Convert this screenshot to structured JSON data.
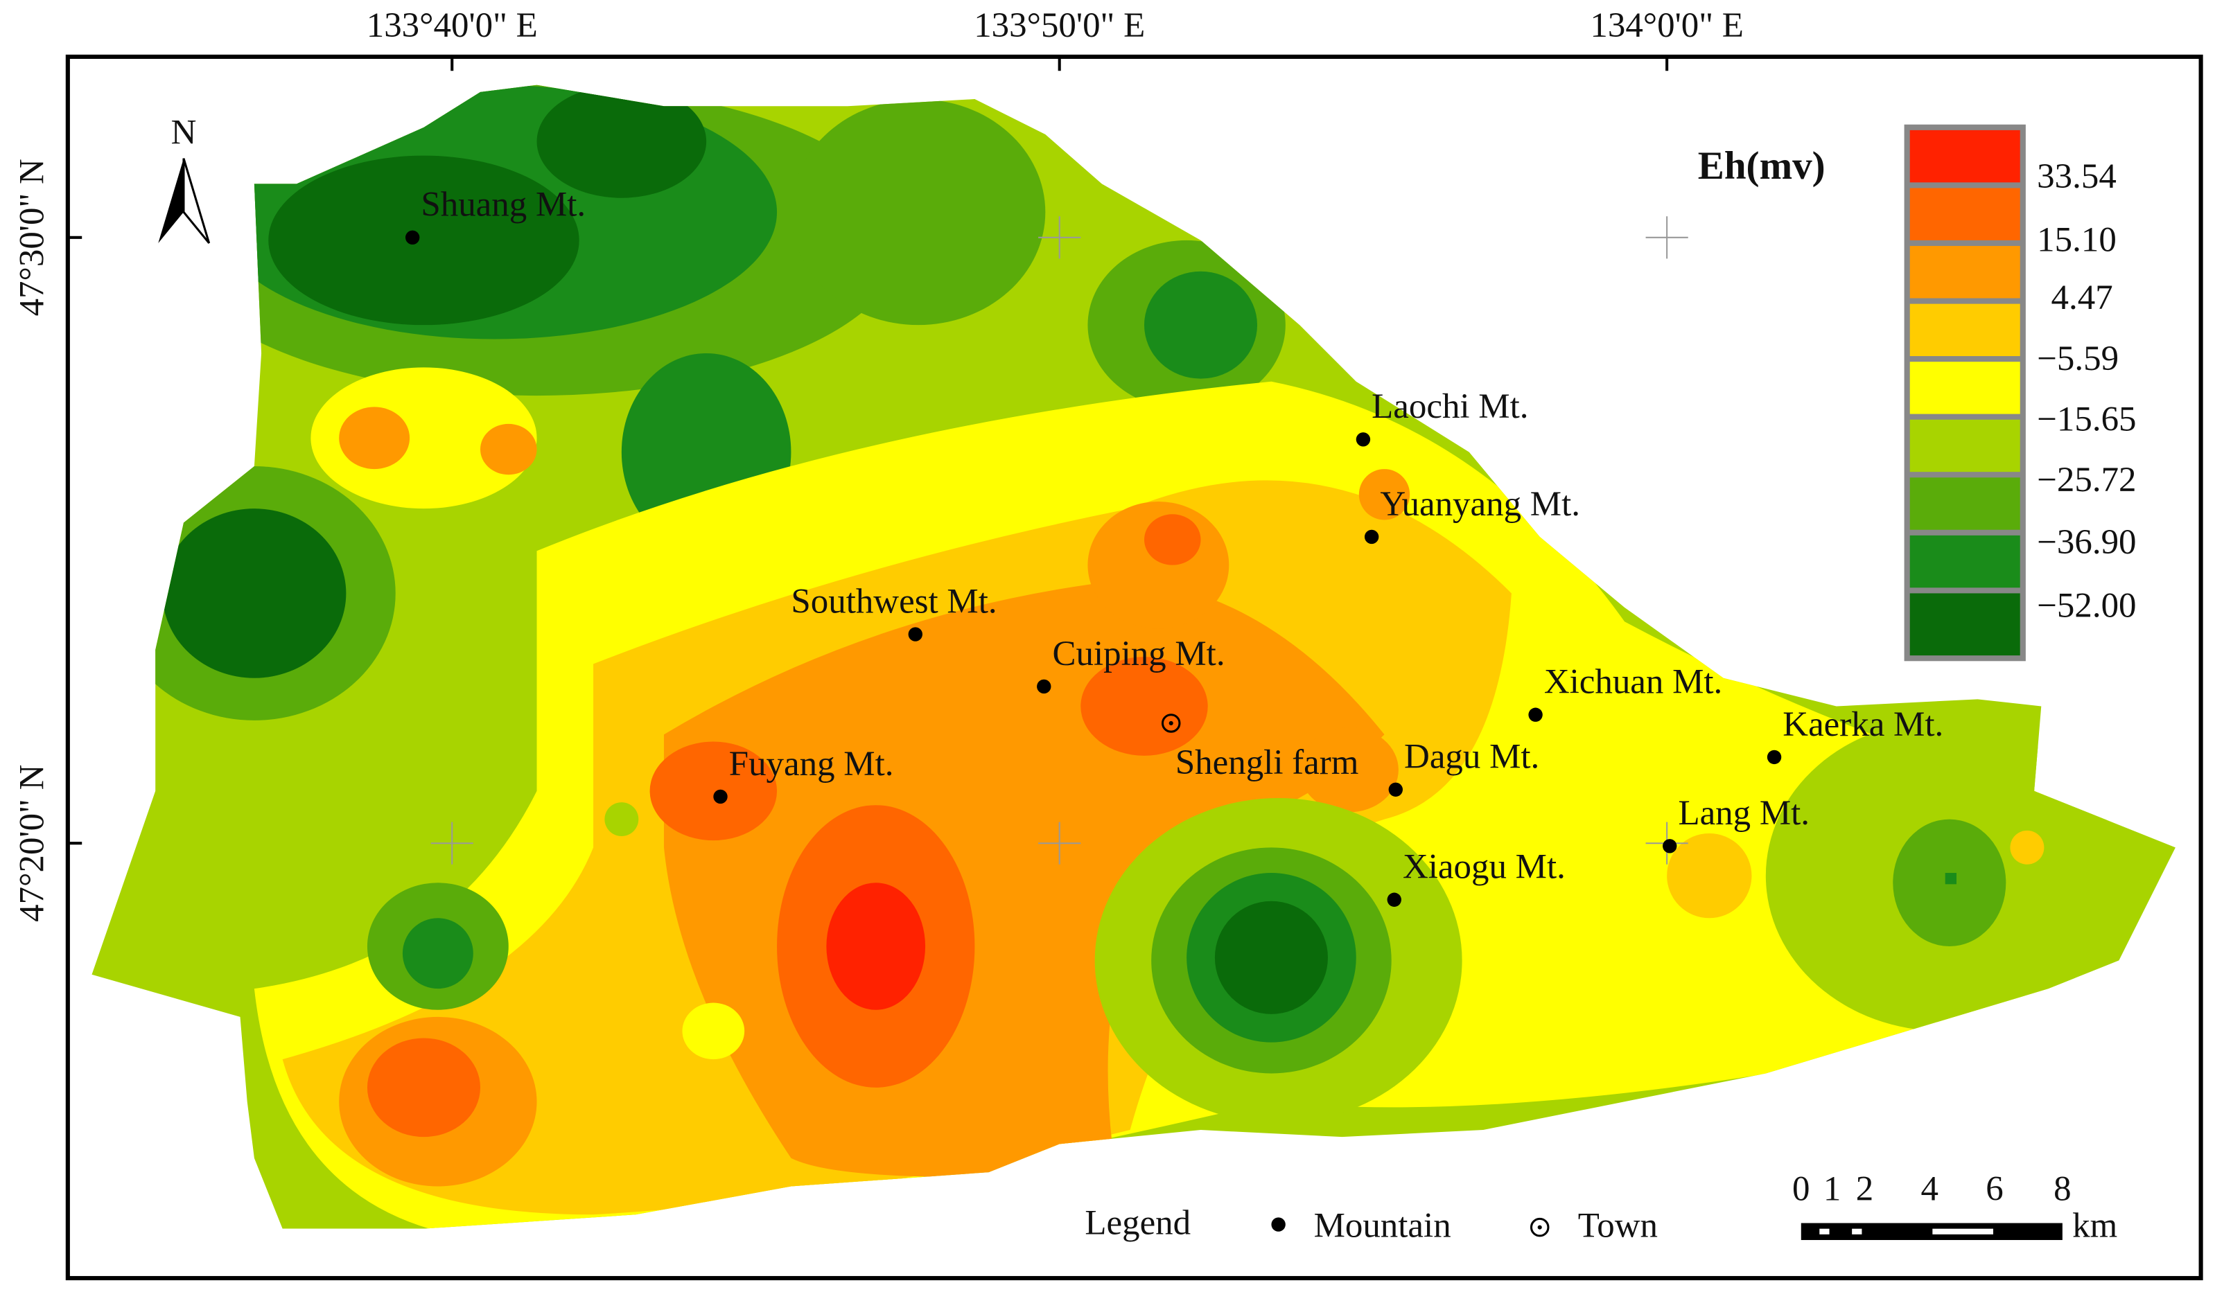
{
  "axes": {
    "top": [
      "133°40'0\" E",
      "133°50'0\" E",
      "134°0'0\" E"
    ],
    "left": [
      "47°30'0\" N",
      "47°20'0\" N"
    ]
  },
  "north_arrow": "N",
  "color_legend": {
    "title": "Eh(mv)",
    "labels": [
      "33.54",
      "15.10",
      "4.47",
      "−5.59",
      "−15.65",
      "−25.72",
      "−36.90",
      "−52.00"
    ]
  },
  "places": [
    "Shuang Mt.",
    "Laochi Mt.",
    "Yuanyang Mt.",
    "Southwest Mt.",
    "Cuiping Mt.",
    "Xichuan Mt.",
    "Kaerka Mt.",
    "Fuyang Mt.",
    "Shengli farm",
    "Dagu Mt.",
    "Lang Mt.",
    "Xiaogu Mt."
  ],
  "legend": {
    "title": "Legend",
    "items": [
      "Mountain",
      "Town"
    ]
  },
  "scale_bar": {
    "labels": [
      "0",
      "1",
      "2",
      "4",
      "6",
      "8"
    ],
    "unit": "km"
  }
}
